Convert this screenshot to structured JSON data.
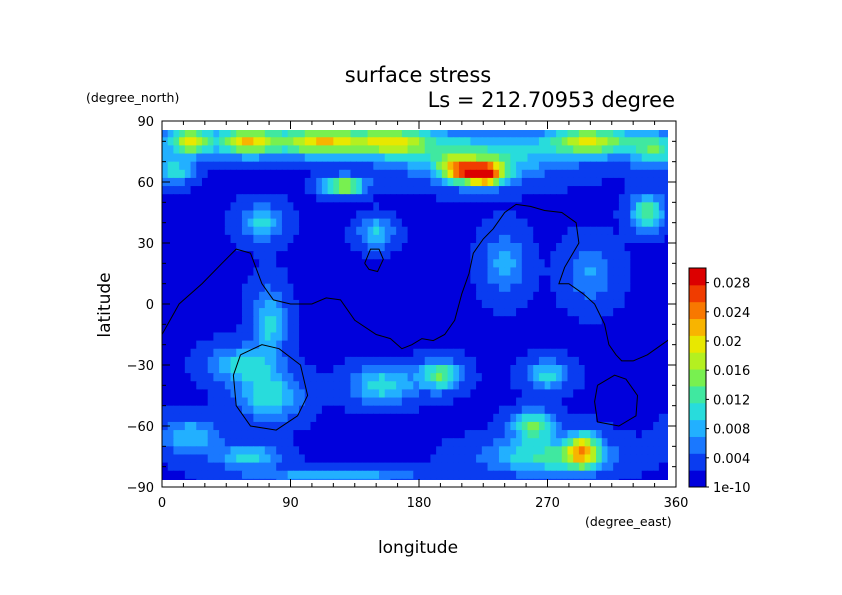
{
  "chart_data": {
    "type": "heatmap",
    "title": "surface stress",
    "subtitle": "Ls = 212.70953 degree",
    "xlabel": "longitude",
    "ylabel": "latitude",
    "x_unit": "(degree_east)",
    "y_unit": "(degree_north)",
    "xlim": [
      0,
      360
    ],
    "ylim": [
      -90,
      90
    ],
    "x_ticks": [
      0,
      90,
      180,
      270,
      360
    ],
    "y_ticks": [
      -90,
      -60,
      -30,
      0,
      30,
      60,
      90
    ],
    "grid": false,
    "colorbar": {
      "placement": "right",
      "levels": [
        "1e-10",
        "0.004",
        "0.008",
        "0.012",
        "0.016",
        "0.02",
        "0.024",
        "0.028"
      ],
      "colors": [
        "#0000dc",
        "#0a3cf0",
        "#1a78ff",
        "#22b0ff",
        "#28dcdc",
        "#40e8a0",
        "#78f050",
        "#b4f020",
        "#e8e800",
        "#f8b400",
        "#f87800",
        "#f03c00",
        "#dc0000"
      ]
    },
    "field": {
      "background": 0.002,
      "blobs": [
        {
          "lon": 20,
          "lat": 80,
          "value": 0.016,
          "sx": 10,
          "sy": 5
        },
        {
          "lon": 60,
          "lat": 80,
          "value": 0.018,
          "sx": 15,
          "sy": 5
        },
        {
          "lon": 110,
          "lat": 80,
          "value": 0.018,
          "sx": 20,
          "sy": 5
        },
        {
          "lon": 160,
          "lat": 80,
          "value": 0.015,
          "sx": 20,
          "sy": 5
        },
        {
          "lon": 300,
          "lat": 80,
          "value": 0.016,
          "sx": 20,
          "sy": 5
        },
        {
          "lon": 345,
          "lat": 76,
          "value": 0.011,
          "sx": 12,
          "sy": 6
        },
        {
          "lon": 220,
          "lat": 73,
          "value": 0.01,
          "sx": 40,
          "sy": 8
        },
        {
          "lon": 225,
          "lat": 64,
          "value": 0.026,
          "sx": 10,
          "sy": 4
        },
        {
          "lon": 205,
          "lat": 66,
          "value": 0.014,
          "sx": 8,
          "sy": 4
        },
        {
          "lon": 127,
          "lat": 58,
          "value": 0.016,
          "sx": 10,
          "sy": 3
        },
        {
          "lon": 10,
          "lat": 65,
          "value": 0.009,
          "sx": 8,
          "sy": 4
        },
        {
          "lon": 340,
          "lat": 45,
          "value": 0.011,
          "sx": 8,
          "sy": 6
        },
        {
          "lon": 150,
          "lat": 35,
          "value": 0.008,
          "sx": 8,
          "sy": 5
        },
        {
          "lon": 70,
          "lat": 40,
          "value": 0.008,
          "sx": 10,
          "sy": 6
        },
        {
          "lon": 75,
          "lat": -10,
          "value": 0.008,
          "sx": 8,
          "sy": 12
        },
        {
          "lon": 55,
          "lat": -30,
          "value": 0.008,
          "sx": 15,
          "sy": 6
        },
        {
          "lon": 75,
          "lat": -45,
          "value": 0.009,
          "sx": 15,
          "sy": 8
        },
        {
          "lon": 195,
          "lat": -35,
          "value": 0.012,
          "sx": 10,
          "sy": 5
        },
        {
          "lon": 155,
          "lat": -40,
          "value": 0.009,
          "sx": 15,
          "sy": 6
        },
        {
          "lon": 260,
          "lat": -60,
          "value": 0.012,
          "sx": 10,
          "sy": 5
        },
        {
          "lon": 295,
          "lat": -72,
          "value": 0.016,
          "sx": 8,
          "sy": 6
        },
        {
          "lon": 270,
          "lat": -75,
          "value": 0.01,
          "sx": 30,
          "sy": 6
        },
        {
          "lon": 270,
          "lat": -35,
          "value": 0.008,
          "sx": 10,
          "sy": 5
        },
        {
          "lon": 60,
          "lat": -75,
          "value": 0.008,
          "sx": 15,
          "sy": 4
        },
        {
          "lon": 120,
          "lat": -85,
          "value": 0.007,
          "sx": 40,
          "sy": 3
        },
        {
          "lon": 20,
          "lat": -65,
          "value": 0.007,
          "sx": 15,
          "sy": 6
        },
        {
          "lon": 240,
          "lat": 20,
          "value": 0.006,
          "sx": 10,
          "sy": 10
        },
        {
          "lon": 300,
          "lat": 15,
          "value": 0.005,
          "sx": 12,
          "sy": 10
        }
      ]
    },
    "contours": [
      {
        "name": "continent-outline",
        "points": [
          [
            0,
            -15
          ],
          [
            12,
            0
          ],
          [
            28,
            10
          ],
          [
            42,
            20
          ],
          [
            52,
            27
          ],
          [
            62,
            25
          ],
          [
            70,
            10
          ],
          [
            78,
            2
          ],
          [
            90,
            0
          ],
          [
            105,
            0
          ],
          [
            115,
            3
          ],
          [
            125,
            2
          ],
          [
            135,
            -8
          ],
          [
            150,
            -15
          ],
          [
            160,
            -17
          ],
          [
            168,
            -22
          ],
          [
            175,
            -20
          ],
          [
            182,
            -17
          ],
          [
            190,
            -18
          ],
          [
            198,
            -15
          ],
          [
            205,
            -8
          ],
          [
            210,
            5
          ],
          [
            215,
            15
          ],
          [
            218,
            25
          ],
          [
            225,
            32
          ],
          [
            232,
            37
          ],
          [
            240,
            45
          ],
          [
            248,
            49
          ],
          [
            258,
            48
          ],
          [
            268,
            46
          ],
          [
            280,
            45
          ],
          [
            290,
            40
          ],
          [
            292,
            30
          ],
          [
            282,
            18
          ],
          [
            278,
            10
          ],
          [
            285,
            10
          ],
          [
            295,
            5
          ],
          [
            303,
            0
          ],
          [
            310,
            -10
          ],
          [
            313,
            -20
          ],
          [
            318,
            -25
          ],
          [
            322,
            -28
          ],
          [
            330,
            -28
          ],
          [
            340,
            -25
          ],
          [
            350,
            -20
          ],
          [
            360,
            -15
          ]
        ]
      },
      {
        "name": "crater-outline-west",
        "points": [
          [
            55,
            -25
          ],
          [
            70,
            -20
          ],
          [
            82,
            -22
          ],
          [
            97,
            -30
          ],
          [
            102,
            -45
          ],
          [
            95,
            -55
          ],
          [
            80,
            -62
          ],
          [
            62,
            -60
          ],
          [
            52,
            -50
          ],
          [
            50,
            -35
          ],
          [
            55,
            -25
          ]
        ]
      },
      {
        "name": "crater-outline-east",
        "points": [
          [
            305,
            -40
          ],
          [
            317,
            -35
          ],
          [
            325,
            -37
          ],
          [
            333,
            -45
          ],
          [
            332,
            -55
          ],
          [
            320,
            -60
          ],
          [
            305,
            -58
          ],
          [
            303,
            -48
          ],
          [
            305,
            -40
          ]
        ]
      },
      {
        "name": "island-outline",
        "points": [
          [
            142,
            20
          ],
          [
            146,
            27
          ],
          [
            152,
            27
          ],
          [
            155,
            22
          ],
          [
            151,
            16
          ],
          [
            145,
            17
          ],
          [
            142,
            20
          ]
        ]
      }
    ]
  }
}
